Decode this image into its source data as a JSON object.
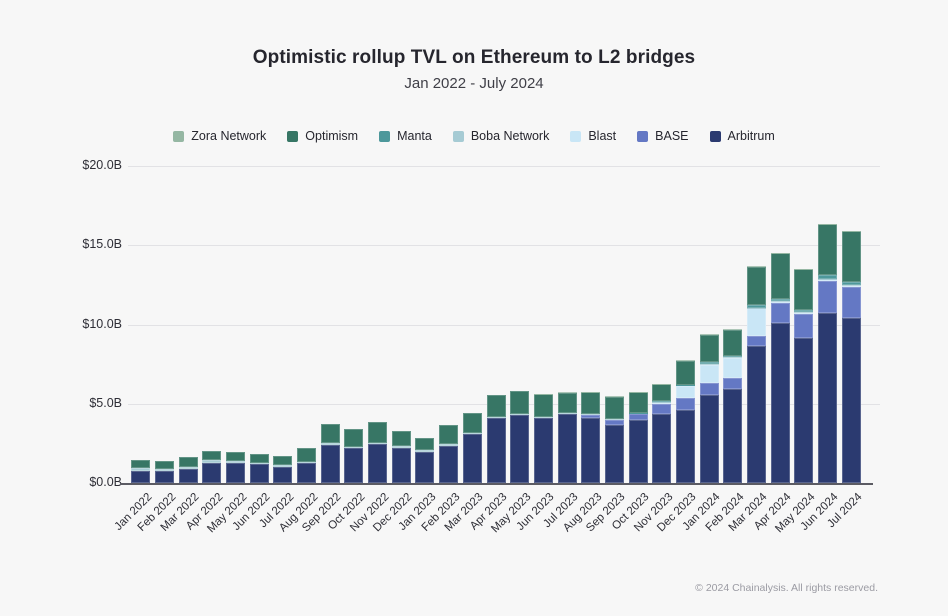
{
  "header": {
    "title": "Optimistic rollup TVL on Ethereum to L2 bridges",
    "subtitle": "Jan 2022 - July 2024"
  },
  "footer": {
    "copyright": "© 2024 Chainalysis. All rights reserved."
  },
  "chart_data": {
    "type": "bar",
    "stacked": true,
    "title": "Optimistic rollup TVL on Ethereum to L2 bridges",
    "subtitle": "Jan 2022 - July 2024",
    "unit": "USD billions",
    "grid": true,
    "legend_position": "top",
    "ylim": [
      0,
      20
    ],
    "ytick_values": [
      0,
      5,
      10,
      15,
      20
    ],
    "ytick_labels": [
      "$0.0B",
      "$5.0B",
      "$10.0B",
      "$15.0B",
      "$20.0B"
    ],
    "legend_order": [
      "Zora Network",
      "Optimism",
      "Manta",
      "Boba Network",
      "Blast",
      "BASE",
      "Arbitrum"
    ],
    "categories": [
      "Jan 2022",
      "Feb 2022",
      "Mar 2022",
      "Apr 2022",
      "May 2022",
      "Jun 2022",
      "Jul 2022",
      "Aug 2022",
      "Sep 2022",
      "Oct 2022",
      "Nov 2022",
      "Dec 2022",
      "Jan 2023",
      "Feb 2023",
      "Mar 2023",
      "Apr 2023",
      "May 2023",
      "Jun 2023",
      "Jul 2023",
      "Aug 2023",
      "Sep 2023",
      "Oct 2023",
      "Nov 2023",
      "Dec 2023",
      "Jan 2024",
      "Feb 2024",
      "Mar 2024",
      "Apr 2024",
      "May 2024",
      "Jun 2024",
      "Jul 2024"
    ],
    "series": [
      {
        "name": "Arbitrum",
        "color": "#2b3a70",
        "values": [
          0.76,
          0.78,
          0.89,
          1.25,
          1.25,
          1.18,
          1.03,
          1.25,
          2.42,
          2.2,
          2.45,
          2.23,
          1.98,
          2.36,
          3.08,
          4.09,
          4.32,
          4.09,
          4.35,
          4.09,
          3.67,
          3.99,
          4.35,
          4.62,
          5.57,
          5.95,
          8.63,
          10.11,
          9.16,
          10.74,
          10.42
        ]
      },
      {
        "name": "BASE",
        "color": "#6478c4",
        "values": [
          0,
          0,
          0,
          0,
          0,
          0,
          0,
          0,
          0,
          0,
          0,
          0,
          0,
          0,
          0,
          0,
          0,
          0,
          0,
          0.2,
          0.32,
          0.34,
          0.63,
          0.74,
          0.74,
          0.68,
          0.63,
          1.22,
          1.48,
          2.0,
          1.94
        ]
      },
      {
        "name": "Blast",
        "color": "#c9e6f6",
        "values": [
          0,
          0,
          0,
          0,
          0,
          0,
          0,
          0,
          0,
          0,
          0,
          0,
          0,
          0,
          0,
          0,
          0,
          0,
          0,
          0,
          0,
          0,
          0.1,
          0.74,
          1.16,
          1.27,
          1.75,
          0.1,
          0.08,
          0.1,
          0.08
        ]
      },
      {
        "name": "Boba Network",
        "color": "#a6cbd4",
        "values": [
          0.17,
          0.13,
          0.15,
          0.17,
          0.15,
          0.1,
          0.08,
          0.1,
          0.1,
          0.1,
          0.1,
          0.08,
          0.08,
          0.08,
          0.08,
          0.06,
          0.06,
          0.06,
          0.06,
          0.06,
          0.06,
          0.06,
          0.06,
          0.06,
          0.06,
          0.06,
          0.06,
          0.05,
          0.05,
          0.05,
          0.05
        ]
      },
      {
        "name": "Manta",
        "color": "#4d989b",
        "values": [
          0,
          0,
          0,
          0,
          0,
          0,
          0,
          0,
          0,
          0,
          0,
          0,
          0,
          0,
          0,
          0,
          0,
          0,
          0,
          0,
          0,
          0.05,
          0.05,
          0.05,
          0.08,
          0.08,
          0.15,
          0.1,
          0.12,
          0.25,
          0.22
        ]
      },
      {
        "name": "Optimism",
        "color": "#377665",
        "values": [
          0.53,
          0.49,
          0.59,
          0.57,
          0.55,
          0.55,
          0.62,
          0.85,
          1.21,
          1.12,
          1.27,
          0.94,
          0.81,
          1.23,
          1.25,
          1.38,
          1.44,
          1.44,
          1.29,
          1.39,
          1.39,
          1.3,
          1.04,
          1.5,
          1.74,
          1.63,
          2.42,
          2.94,
          2.62,
          3.17,
          3.17
        ]
      },
      {
        "name": "Zora Network",
        "color": "#95b7a3",
        "values": [
          0,
          0,
          0,
          0,
          0,
          0,
          0,
          0,
          0,
          0,
          0,
          0,
          0,
          0,
          0,
          0,
          0,
          0.02,
          0.02,
          0.02,
          0.02,
          0.02,
          0.02,
          0.02,
          0.02,
          0.02,
          0.02,
          0.02,
          0.02,
          0.02,
          0.02
        ]
      }
    ]
  }
}
